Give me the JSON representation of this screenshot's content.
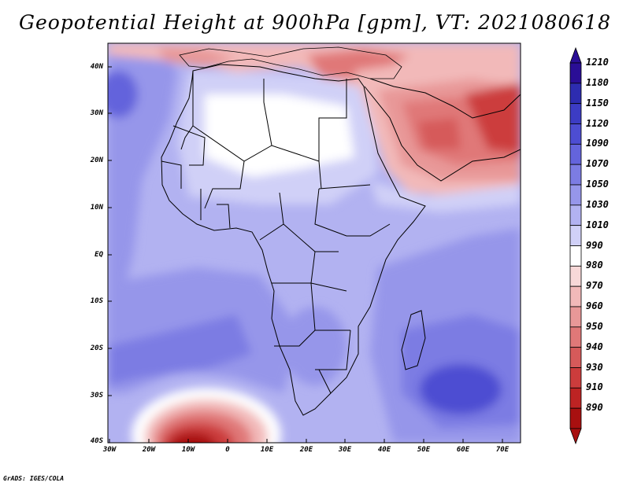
{
  "title": "Geopotential Height at 900hPa [gpm], VT: 2021080618",
  "credit": "GrADS: IGES/COLA",
  "lat_labels": [
    "40N",
    "30N",
    "20N",
    "10N",
    "EQ",
    "10S",
    "20S",
    "30S",
    "40S"
  ],
  "lon_labels": [
    "30W",
    "20W",
    "10W",
    "0",
    "10E",
    "20E",
    "30E",
    "40E",
    "50E",
    "60E",
    "70E"
  ],
  "colorbar": {
    "levels": [
      "1210",
      "1180",
      "1150",
      "1120",
      "1090",
      "1070",
      "1050",
      "1030",
      "1010",
      "990",
      "980",
      "970",
      "960",
      "950",
      "940",
      "930",
      "910",
      "890"
    ],
    "colors": [
      "#2a0e96",
      "#2d2cb0",
      "#3c3cc4",
      "#4d4dd2",
      "#6464dc",
      "#7c7ce3",
      "#9696ea",
      "#b2b2f1",
      "#d0d0f7",
      "#ffffff",
      "#f8d8d8",
      "#f2b9b9",
      "#e89898",
      "#e07878",
      "#d65a5a",
      "#cc3c3c",
      "#bd2323",
      "#a81010"
    ]
  }
}
